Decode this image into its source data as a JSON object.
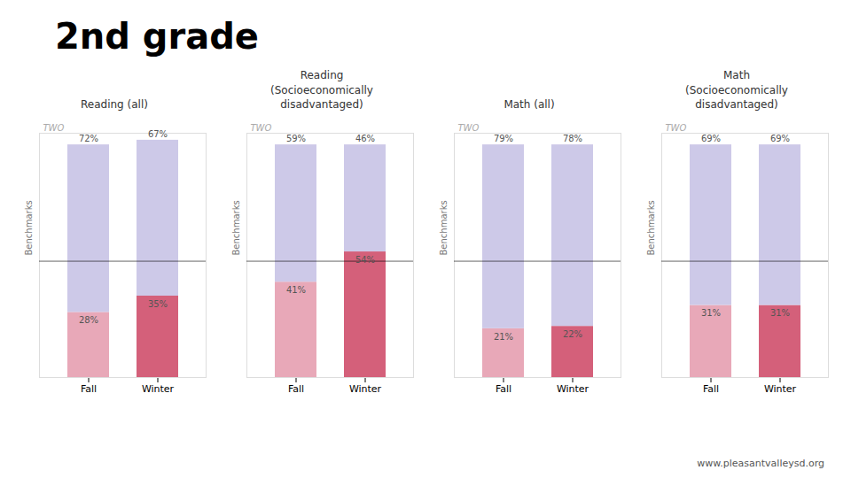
{
  "title": "2nd grade",
  "caption": "www.pleasantvalleysd.org",
  "chart_data": [
    {
      "type": "bar",
      "stacked": true,
      "title": "Reading (all)",
      "ylabel": "Benchmarks",
      "annotation": "TWO",
      "categories": [
        "Fall",
        "Winter"
      ],
      "series": [
        {
          "colors": [
            "#e8a8b8",
            "#d4607a"
          ],
          "values": [
            28,
            35
          ],
          "value_labels": [
            "28%",
            "35%"
          ]
        },
        {
          "color": "#cdc9e8",
          "values": [
            72,
            67
          ],
          "value_labels": [
            "72%",
            "67%"
          ]
        }
      ],
      "ylim": [
        0,
        105
      ],
      "benchmark": 50,
      "tick_labels": "x",
      "data_labels": true
    },
    {
      "type": "bar",
      "stacked": true,
      "title": "Reading\n(Socioeconomically\ndisadvantaged)",
      "ylabel": "Benchmarks",
      "annotation": "TWO",
      "categories": [
        "Fall",
        "Winter"
      ],
      "series": [
        {
          "colors": [
            "#e8a8b8",
            "#d4607a"
          ],
          "values": [
            41,
            54
          ],
          "value_labels": [
            "41%",
            "54%"
          ]
        },
        {
          "color": "#cdc9e8",
          "values": [
            59,
            46
          ],
          "value_labels": [
            "59%",
            "46%"
          ]
        }
      ],
      "ylim": [
        0,
        105
      ],
      "benchmark": 50,
      "tick_labels": "x",
      "data_labels": true
    },
    {
      "type": "bar",
      "stacked": true,
      "title": "Math (all)",
      "ylabel": "Benchmarks",
      "annotation": "TWO",
      "categories": [
        "Fall",
        "Winter"
      ],
      "series": [
        {
          "colors": [
            "#e8a8b8",
            "#d4607a"
          ],
          "values": [
            21,
            22
          ],
          "value_labels": [
            "21%",
            "22%"
          ]
        },
        {
          "color": "#cdc9e8",
          "values": [
            79,
            78
          ],
          "value_labels": [
            "79%",
            "78%"
          ]
        }
      ],
      "ylim": [
        0,
        105
      ],
      "benchmark": 50,
      "tick_labels": "x",
      "data_labels": true
    },
    {
      "type": "bar",
      "stacked": true,
      "title": "Math\n(Socioeconomically\ndisadvantaged)",
      "ylabel": "Benchmarks",
      "annotation": "TWO",
      "categories": [
        "Fall",
        "Winter"
      ],
      "series": [
        {
          "colors": [
            "#e8a8b8",
            "#d4607a"
          ],
          "values": [
            31,
            31
          ],
          "value_labels": [
            "31%",
            "31%"
          ]
        },
        {
          "color": "#cdc9e8",
          "values": [
            69,
            69
          ],
          "value_labels": [
            "69%",
            "69%"
          ]
        }
      ],
      "ylim": [
        0,
        105
      ],
      "benchmark": 50,
      "tick_labels": "x",
      "data_labels": true
    }
  ]
}
